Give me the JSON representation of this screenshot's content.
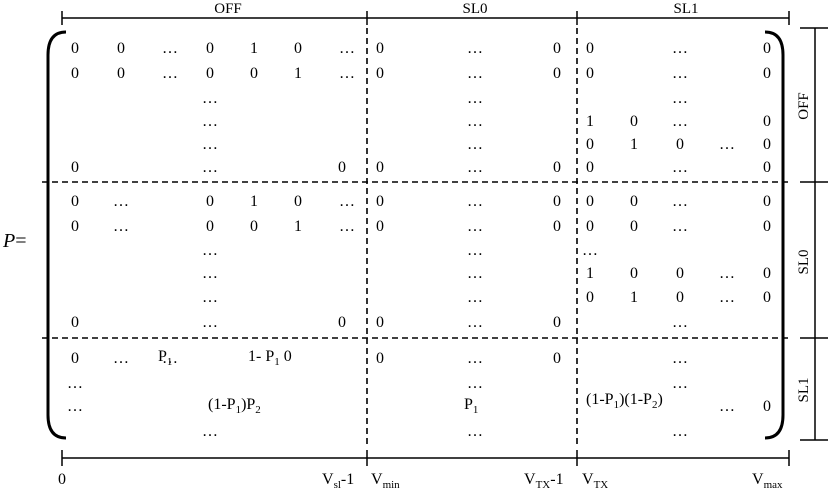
{
  "matrix_symbol": "P",
  "equals": "=",
  "columns": [
    {
      "id": "off",
      "label": "OFF"
    },
    {
      "id": "sl0",
      "label": "SL0"
    },
    {
      "id": "sl1",
      "label": "SL1"
    }
  ],
  "rows": [
    {
      "id": "off",
      "label": "OFF"
    },
    {
      "id": "sl0",
      "label": "SL0"
    },
    {
      "id": "sl1",
      "label": "SL1"
    }
  ],
  "bottom_axis": {
    "origin": "0",
    "v_sl_minus_1": {
      "base": "V",
      "sub": "sl",
      "suffix": "-1"
    },
    "v_min": {
      "base": "V",
      "sub": "min"
    },
    "v_tx_minus_1": {
      "base": "V",
      "sub": "TX",
      "suffix": "-1"
    },
    "v_tx": {
      "base": "V",
      "sub": "TX"
    },
    "v_max": {
      "base": "V",
      "sub": "max"
    }
  },
  "entries": {
    "zero": "0",
    "one": "1",
    "ellipsis": "…",
    "p1": {
      "base": "P",
      "sub": "1"
    },
    "one_minus_p1": {
      "prefix": "1- P",
      "sub": "1",
      "suffix": " 0"
    },
    "p1_p2": {
      "a": "(1-P",
      "a_sub": "1",
      "b": ")P",
      "b_sub": "2"
    },
    "p1c_p2c": {
      "a": "(1-P",
      "a_sub": "1",
      "b": ")(1-P",
      "b_sub": "2",
      "c": ")"
    }
  }
}
